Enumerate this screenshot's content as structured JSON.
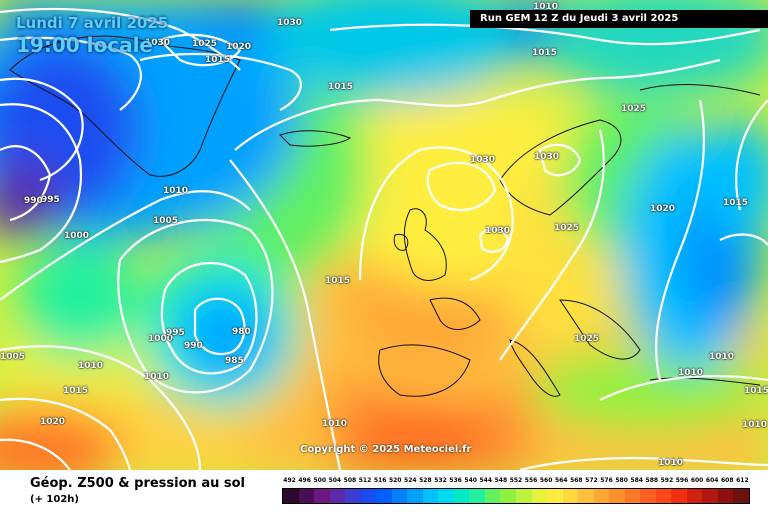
{
  "header": {
    "date": "Lundi 7 avril 2025",
    "time": "19:00 locale",
    "run": "Run GEM 12 Z du Jeudi 3 avril 2025"
  },
  "copyright": "Copyright © 2025 Meteociel.fr",
  "footer": {
    "title": "Géop. Z500 & pression au sol",
    "subtitle": "(+ 102h)"
  },
  "legend": {
    "ticks": [
      "492",
      "496",
      "500",
      "504",
      "508",
      "512",
      "516",
      "520",
      "524",
      "528",
      "532",
      "536",
      "540",
      "544",
      "548",
      "552",
      "556",
      "560",
      "564",
      "568",
      "572",
      "576",
      "580",
      "584",
      "588",
      "592",
      "596",
      "600",
      "604",
      "608",
      "612"
    ],
    "colors": [
      "#2b0a2e",
      "#4a0f55",
      "#6b1780",
      "#5a2aa8",
      "#3a3ed0",
      "#1a4df0",
      "#0060ff",
      "#0080ff",
      "#00a0ff",
      "#00c0ff",
      "#00d8f0",
      "#00e8c8",
      "#20f0a0",
      "#60f060",
      "#90f040",
      "#c0f040",
      "#e8f040",
      "#ffee40",
      "#ffd840",
      "#ffc040",
      "#ffa838",
      "#ff9030",
      "#ff7828",
      "#ff6020",
      "#ff4818",
      "#f03010",
      "#d02010",
      "#b01810",
      "#901010",
      "#701010"
    ]
  },
  "isobars": [
    "1030",
    "1030",
    "1025",
    "1020",
    "1015",
    "1015",
    "1015",
    "1010",
    "1010",
    "995",
    "990",
    "1000",
    "1005",
    "1010",
    "1000",
    "995",
    "990",
    "980",
    "985",
    "1005",
    "1010",
    "1015",
    "1020",
    "1015",
    "1010",
    "1030",
    "1030",
    "1030",
    "1025",
    "1025",
    "1025",
    "1020",
    "1015",
    "1010",
    "1010",
    "1015",
    "1010",
    "1010"
  ]
}
